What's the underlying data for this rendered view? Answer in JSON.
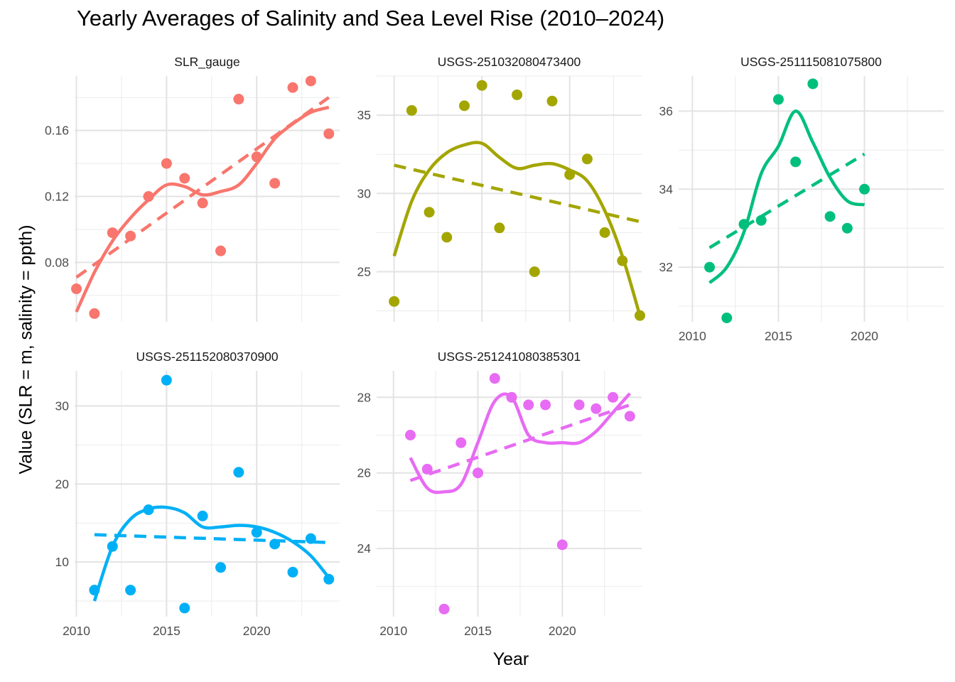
{
  "title": "Yearly Averages of Salinity and Sea Level Rise (2010–2024)",
  "xlabel": "Year",
  "ylabel": "Value (SLR = m, salinity = ppth)",
  "chart_data": [
    {
      "type": "scatter",
      "facet": "SLR_gauge",
      "color": "#F8766D",
      "x_ticks": [
        2010,
        2015,
        2020
      ],
      "y_ticks": [
        "0.08",
        "0.12",
        "0.16"
      ],
      "xlim": [
        2009.9,
        2024.6
      ],
      "ylim": [
        0.044,
        0.193
      ],
      "points": {
        "x": [
          2010,
          2011,
          2012,
          2013,
          2014,
          2015,
          2016,
          2017,
          2018,
          2019,
          2020,
          2021,
          2022,
          2023,
          2024
        ],
        "y": [
          0.064,
          0.049,
          0.098,
          0.096,
          0.12,
          0.14,
          0.131,
          0.116,
          0.087,
          0.179,
          0.144,
          0.128,
          0.186,
          0.19,
          0.158
        ]
      },
      "smooth": {
        "x": [
          2010,
          2011,
          2012,
          2013,
          2014,
          2015,
          2016,
          2017,
          2018,
          2019,
          2020,
          2021,
          2022,
          2023,
          2024
        ],
        "y": [
          0.05,
          0.074,
          0.093,
          0.107,
          0.118,
          0.127,
          0.126,
          0.121,
          0.123,
          0.127,
          0.14,
          0.155,
          0.164,
          0.171,
          0.174
        ]
      },
      "trend": {
        "x": [
          2010,
          2024
        ],
        "y": [
          0.071,
          0.18
        ]
      }
    },
    {
      "type": "scatter",
      "facet": "USGS-251032080473400",
      "color": "#A3A500",
      "x_ticks": [
        2010,
        2015,
        2020
      ],
      "y_ticks": [
        "25",
        "30",
        "35"
      ],
      "xlim": [
        2009.0,
        2024.1
      ],
      "ylim": [
        21.8,
        37.5
      ],
      "points": {
        "x": [
          2010,
          2011,
          2012,
          2013,
          2014,
          2015,
          2016,
          2017,
          2018,
          2019,
          2020,
          2021,
          2022,
          2023,
          2024
        ],
        "y": [
          23.1,
          35.3,
          28.8,
          27.2,
          35.6,
          36.9,
          27.8,
          36.3,
          25.0,
          35.9,
          31.2,
          32.2,
          27.5,
          25.7,
          22.2
        ]
      },
      "smooth": {
        "x": [
          2010,
          2011,
          2012,
          2013,
          2014,
          2015,
          2016,
          2017,
          2018,
          2019,
          2020,
          2021,
          2022,
          2023,
          2024
        ],
        "y": [
          26.0,
          29.5,
          31.5,
          32.6,
          33.1,
          33.2,
          32.3,
          31.6,
          31.8,
          31.9,
          31.5,
          30.8,
          28.9,
          26.0,
          22.2
        ]
      },
      "trend": {
        "x": [
          2010,
          2024
        ],
        "y": [
          31.8,
          28.2
        ]
      }
    },
    {
      "type": "scatter",
      "facet": "USGS-251115081075800",
      "color": "#00BF7D",
      "x_ticks": [
        2010,
        2015,
        2020
      ],
      "y_ticks": [
        "32",
        "34",
        "36"
      ],
      "xlim": [
        2009.2,
        2024.6
      ],
      "ylim": [
        30.6,
        36.9
      ],
      "points": {
        "x": [
          2011,
          2012,
          2013,
          2014,
          2015,
          2016,
          2017,
          2018,
          2019,
          2020
        ],
        "y": [
          32.0,
          30.7,
          33.1,
          33.2,
          36.3,
          34.7,
          36.7,
          33.3,
          33.0,
          34.0
        ]
      },
      "smooth": {
        "x": [
          2011,
          2012,
          2013,
          2014,
          2015,
          2016,
          2017,
          2018,
          2019,
          2020
        ],
        "y": [
          31.6,
          32.0,
          32.9,
          34.4,
          35.1,
          36.0,
          35.2,
          34.3,
          33.7,
          33.6
        ]
      },
      "trend": {
        "x": [
          2011,
          2020
        ],
        "y": [
          32.5,
          34.9
        ]
      }
    },
    {
      "type": "scatter",
      "facet": "USGS-251152080370900",
      "color": "#00B0F6",
      "x_ticks": [
        2010,
        2015,
        2020
      ],
      "y_ticks": [
        "10",
        "20",
        "30"
      ],
      "xlim": [
        2009.9,
        2024.6
      ],
      "ylim": [
        3.0,
        34.5
      ],
      "points": {
        "x": [
          2011,
          2012,
          2013,
          2014,
          2015,
          2016,
          2017,
          2018,
          2019,
          2020,
          2021,
          2022,
          2023,
          2024
        ],
        "y": [
          6.4,
          12.0,
          6.4,
          16.7,
          33.3,
          4.1,
          15.9,
          9.3,
          21.5,
          13.8,
          12.3,
          8.7,
          13.0,
          7.8
        ]
      },
      "smooth": {
        "x": [
          2011,
          2012,
          2013,
          2014,
          2015,
          2016,
          2017,
          2018,
          2019,
          2020,
          2021,
          2022,
          2023,
          2024
        ],
        "y": [
          5.0,
          12.0,
          15.5,
          16.8,
          17.0,
          16.3,
          14.5,
          14.5,
          14.7,
          14.5,
          13.8,
          12.6,
          10.8,
          8.0
        ]
      },
      "trend": {
        "x": [
          2011,
          2024
        ],
        "y": [
          13.5,
          12.5
        ]
      }
    },
    {
      "type": "scatter",
      "facet": "USGS-251241080385301",
      "color": "#E76BF3",
      "x_ticks": [
        2010,
        2015,
        2020
      ],
      "y_ticks": [
        "24",
        "26",
        "28"
      ],
      "xlim": [
        2009.0,
        2024.7
      ],
      "ylim": [
        22.2,
        28.7
      ],
      "points": {
        "x": [
          2011,
          2012,
          2013,
          2014,
          2015,
          2016,
          2017,
          2018,
          2019,
          2020,
          2021,
          2022,
          2023,
          2024
        ],
        "y": [
          27.0,
          26.1,
          22.4,
          26.8,
          26.0,
          28.5,
          28.0,
          27.8,
          27.8,
          24.1,
          27.8,
          27.7,
          28.0,
          27.5
        ]
      },
      "smooth": {
        "x": [
          2011,
          2012,
          2013,
          2014,
          2015,
          2016,
          2017,
          2018,
          2019,
          2020,
          2021,
          2022,
          2023,
          2024
        ],
        "y": [
          26.4,
          25.6,
          25.5,
          25.7,
          26.8,
          27.9,
          28.0,
          27.0,
          26.8,
          26.8,
          26.8,
          27.1,
          27.6,
          28.1
        ]
      },
      "trend": {
        "x": [
          2011,
          2024
        ],
        "y": [
          25.8,
          27.8
        ]
      }
    }
  ]
}
